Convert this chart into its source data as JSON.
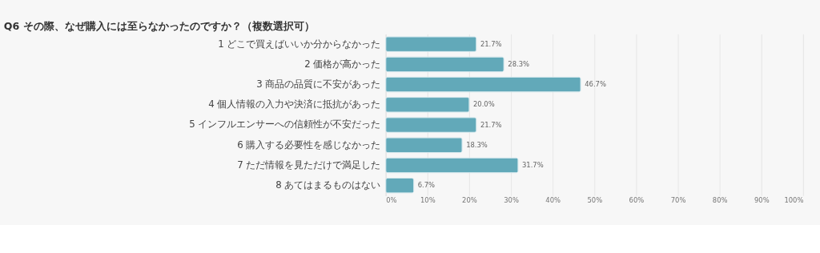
{
  "chart_data": {
    "type": "bar",
    "orientation": "horizontal",
    "title": "Q6 その際、なぜ購入には至らなかったのですか？（複数選択可）",
    "categories": [
      "1 どこで買えばいいか分からなかった",
      "2 価格が高かった",
      "3 商品の品質に不安があった",
      "4 個人情報の入力や決済に抵抗があった",
      "5 インフルエンサーへの信頼性が不安だった",
      "6 購入する必要性を感じなかった",
      "7 ただ情報を見ただけで満足した",
      "8 あてはまるものはない"
    ],
    "values": [
      21.7,
      28.3,
      46.7,
      20.0,
      21.7,
      18.3,
      31.7,
      6.7
    ],
    "value_labels": [
      "21.7%",
      "28.3%",
      "46.7%",
      "20.0%",
      "21.7%",
      "18.3%",
      "31.7%",
      "6.7%"
    ],
    "color": "#62a9b9",
    "xlim": [
      0,
      100
    ],
    "xticks": [
      {
        "value": 0,
        "label": "0%"
      },
      {
        "value": 10,
        "label": "10%"
      },
      {
        "value": 20,
        "label": "20%"
      },
      {
        "value": 30,
        "label": "30%"
      },
      {
        "value": 40,
        "label": "40%"
      },
      {
        "value": 50,
        "label": "50%"
      },
      {
        "value": 60,
        "label": "60%"
      },
      {
        "value": 70,
        "label": "70%"
      },
      {
        "value": 80,
        "label": "80%"
      },
      {
        "value": 90,
        "label": "90%"
      },
      {
        "value": 100,
        "label": "100%"
      }
    ],
    "grid": "x"
  }
}
